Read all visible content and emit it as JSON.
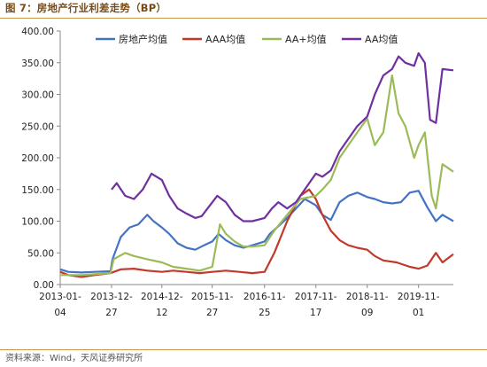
{
  "figure": {
    "title": "图 7：房地产行业利差走势（BP）",
    "source": "资料来源：Wind，天风证券研究所"
  },
  "chart_data": {
    "type": "line",
    "ylim": [
      0,
      400
    ],
    "yticks": [
      "0.00",
      "50.00",
      "100.00",
      "150.00",
      "200.00",
      "250.00",
      "300.00",
      "350.00",
      "400.00"
    ],
    "xlim": [
      "2013-01-04",
      "2020-06-30"
    ],
    "xticks": [
      {
        "date": "2013-01-04",
        "label": [
          "2013-01-",
          "04"
        ]
      },
      {
        "date": "2013-12-27",
        "label": [
          "2013-12-",
          "27"
        ]
      },
      {
        "date": "2014-12-12",
        "label": [
          "2014-12-",
          "12"
        ]
      },
      {
        "date": "2015-11-27",
        "label": [
          "2015-11-",
          "27"
        ]
      },
      {
        "date": "2016-11-25",
        "label": [
          "2016-11-",
          "25"
        ]
      },
      {
        "date": "2017-11-17",
        "label": [
          "2017-11-",
          "17"
        ]
      },
      {
        "date": "2018-11-09",
        "label": [
          "2018-11-",
          "09"
        ]
      },
      {
        "date": "2019-11-01",
        "label": [
          "2019-11-",
          "01"
        ]
      }
    ],
    "legend_position": "top",
    "grid": false,
    "series": [
      {
        "name": "房地产均值",
        "color": "#4472c4",
        "points": [
          [
            "2013-01-04",
            24
          ],
          [
            "2013-03-01",
            20
          ],
          [
            "2013-06-01",
            19
          ],
          [
            "2013-09-01",
            20
          ],
          [
            "2013-12-20",
            21
          ],
          [
            "2014-01-03",
            40
          ],
          [
            "2014-03-01",
            75
          ],
          [
            "2014-05-01",
            90
          ],
          [
            "2014-07-01",
            95
          ],
          [
            "2014-09-01",
            110
          ],
          [
            "2014-10-15",
            100
          ],
          [
            "2014-12-12",
            90
          ],
          [
            "2015-02-01",
            80
          ],
          [
            "2015-04-01",
            65
          ],
          [
            "2015-06-01",
            58
          ],
          [
            "2015-08-01",
            55
          ],
          [
            "2015-10-01",
            62
          ],
          [
            "2015-11-27",
            68
          ],
          [
            "2016-01-10",
            80
          ],
          [
            "2016-03-01",
            70
          ],
          [
            "2016-05-01",
            62
          ],
          [
            "2016-07-01",
            58
          ],
          [
            "2016-09-01",
            62
          ],
          [
            "2016-11-25",
            68
          ],
          [
            "2017-01-01",
            80
          ],
          [
            "2017-03-01",
            92
          ],
          [
            "2017-05-01",
            105
          ],
          [
            "2017-07-01",
            120
          ],
          [
            "2017-09-01",
            135
          ],
          [
            "2017-11-17",
            125
          ],
          [
            "2018-01-01",
            110
          ],
          [
            "2018-03-01",
            102
          ],
          [
            "2018-05-01",
            130
          ],
          [
            "2018-07-01",
            140
          ],
          [
            "2018-09-01",
            145
          ],
          [
            "2018-11-09",
            138
          ],
          [
            "2019-01-01",
            135
          ],
          [
            "2019-03-01",
            130
          ],
          [
            "2019-05-01",
            128
          ],
          [
            "2019-07-01",
            130
          ],
          [
            "2019-09-01",
            145
          ],
          [
            "2019-11-01",
            148
          ],
          [
            "2020-01-01",
            122
          ],
          [
            "2020-03-01",
            100
          ],
          [
            "2020-04-15",
            110
          ],
          [
            "2020-06-30",
            100
          ]
        ]
      },
      {
        "name": "AAA均值",
        "color": "#c0392b",
        "points": [
          [
            "2013-01-04",
            20
          ],
          [
            "2013-03-01",
            15
          ],
          [
            "2013-06-01",
            12
          ],
          [
            "2013-09-01",
            15
          ],
          [
            "2013-12-20",
            18
          ],
          [
            "2014-03-01",
            24
          ],
          [
            "2014-06-01",
            25
          ],
          [
            "2014-09-01",
            22
          ],
          [
            "2014-12-12",
            20
          ],
          [
            "2015-03-01",
            22
          ],
          [
            "2015-06-01",
            20
          ],
          [
            "2015-09-01",
            18
          ],
          [
            "2015-11-27",
            20
          ],
          [
            "2016-03-01",
            22
          ],
          [
            "2016-06-01",
            20
          ],
          [
            "2016-09-01",
            18
          ],
          [
            "2016-11-25",
            20
          ],
          [
            "2017-02-01",
            50
          ],
          [
            "2017-05-01",
            100
          ],
          [
            "2017-08-01",
            140
          ],
          [
            "2017-10-01",
            150
          ],
          [
            "2017-11-17",
            135
          ],
          [
            "2018-01-01",
            110
          ],
          [
            "2018-03-01",
            85
          ],
          [
            "2018-05-01",
            70
          ],
          [
            "2018-07-01",
            62
          ],
          [
            "2018-09-01",
            58
          ],
          [
            "2018-11-09",
            55
          ],
          [
            "2019-01-01",
            45
          ],
          [
            "2019-03-01",
            38
          ],
          [
            "2019-06-01",
            35
          ],
          [
            "2019-09-01",
            28
          ],
          [
            "2019-11-01",
            25
          ],
          [
            "2020-01-01",
            30
          ],
          [
            "2020-03-01",
            50
          ],
          [
            "2020-04-15",
            35
          ],
          [
            "2020-06-30",
            48
          ]
        ]
      },
      {
        "name": "AA+均值",
        "color": "#9bbb59",
        "points": [
          [
            "2013-01-04",
            15
          ],
          [
            "2013-06-01",
            15
          ],
          [
            "2013-12-20",
            18
          ],
          [
            "2014-01-10",
            40
          ],
          [
            "2014-04-01",
            50
          ],
          [
            "2014-06-01",
            45
          ],
          [
            "2014-09-01",
            40
          ],
          [
            "2014-12-12",
            35
          ],
          [
            "2015-03-01",
            28
          ],
          [
            "2015-06-01",
            25
          ],
          [
            "2015-09-01",
            22
          ],
          [
            "2015-11-27",
            28
          ],
          [
            "2016-01-20",
            95
          ],
          [
            "2016-03-01",
            80
          ],
          [
            "2016-05-01",
            68
          ],
          [
            "2016-07-01",
            60
          ],
          [
            "2016-09-01",
            60
          ],
          [
            "2016-11-25",
            62
          ],
          [
            "2017-02-01",
            85
          ],
          [
            "2017-05-01",
            110
          ],
          [
            "2017-08-01",
            135
          ],
          [
            "2017-11-17",
            140
          ],
          [
            "2018-01-01",
            150
          ],
          [
            "2018-03-01",
            165
          ],
          [
            "2018-05-01",
            200
          ],
          [
            "2018-07-01",
            220
          ],
          [
            "2018-09-01",
            240
          ],
          [
            "2018-11-09",
            262
          ],
          [
            "2019-01-01",
            220
          ],
          [
            "2019-03-01",
            240
          ],
          [
            "2019-05-01",
            330
          ],
          [
            "2019-06-15",
            270
          ],
          [
            "2019-08-01",
            250
          ],
          [
            "2019-10-01",
            200
          ],
          [
            "2019-11-01",
            220
          ],
          [
            "2019-12-15",
            240
          ],
          [
            "2020-02-01",
            140
          ],
          [
            "2020-03-01",
            120
          ],
          [
            "2020-04-15",
            190
          ],
          [
            "2020-06-30",
            178
          ]
        ]
      },
      {
        "name": "AA均值",
        "color": "#7030a0",
        "points": [
          [
            "2013-12-27",
            150
          ],
          [
            "2014-02-01",
            160
          ],
          [
            "2014-04-01",
            140
          ],
          [
            "2014-06-01",
            135
          ],
          [
            "2014-08-01",
            150
          ],
          [
            "2014-10-01",
            175
          ],
          [
            "2014-12-12",
            165
          ],
          [
            "2015-02-01",
            140
          ],
          [
            "2015-04-01",
            120
          ],
          [
            "2015-06-01",
            112
          ],
          [
            "2015-08-01",
            105
          ],
          [
            "2015-09-15",
            108
          ],
          [
            "2016-01-01",
            140
          ],
          [
            "2016-03-01",
            130
          ],
          [
            "2016-05-01",
            110
          ],
          [
            "2016-07-01",
            100
          ],
          [
            "2016-09-01",
            100
          ],
          [
            "2016-11-25",
            105
          ],
          [
            "2017-01-15",
            120
          ],
          [
            "2017-03-01",
            130
          ],
          [
            "2017-05-01",
            120
          ],
          [
            "2017-07-01",
            130
          ],
          [
            "2017-09-01",
            150
          ],
          [
            "2017-11-17",
            175
          ],
          [
            "2018-01-01",
            170
          ],
          [
            "2018-03-01",
            180
          ],
          [
            "2018-05-01",
            210
          ],
          [
            "2018-07-01",
            230
          ],
          [
            "2018-09-01",
            250
          ],
          [
            "2018-11-09",
            265
          ],
          [
            "2019-01-01",
            300
          ],
          [
            "2019-03-01",
            330
          ],
          [
            "2019-05-01",
            340
          ],
          [
            "2019-06-15",
            360
          ],
          [
            "2019-08-01",
            350
          ],
          [
            "2019-10-01",
            345
          ],
          [
            "2019-11-01",
            365
          ],
          [
            "2019-12-15",
            350
          ],
          [
            "2020-01-20",
            260
          ],
          [
            "2020-03-01",
            255
          ],
          [
            "2020-04-15",
            340
          ],
          [
            "2020-06-30",
            338
          ]
        ]
      }
    ]
  }
}
